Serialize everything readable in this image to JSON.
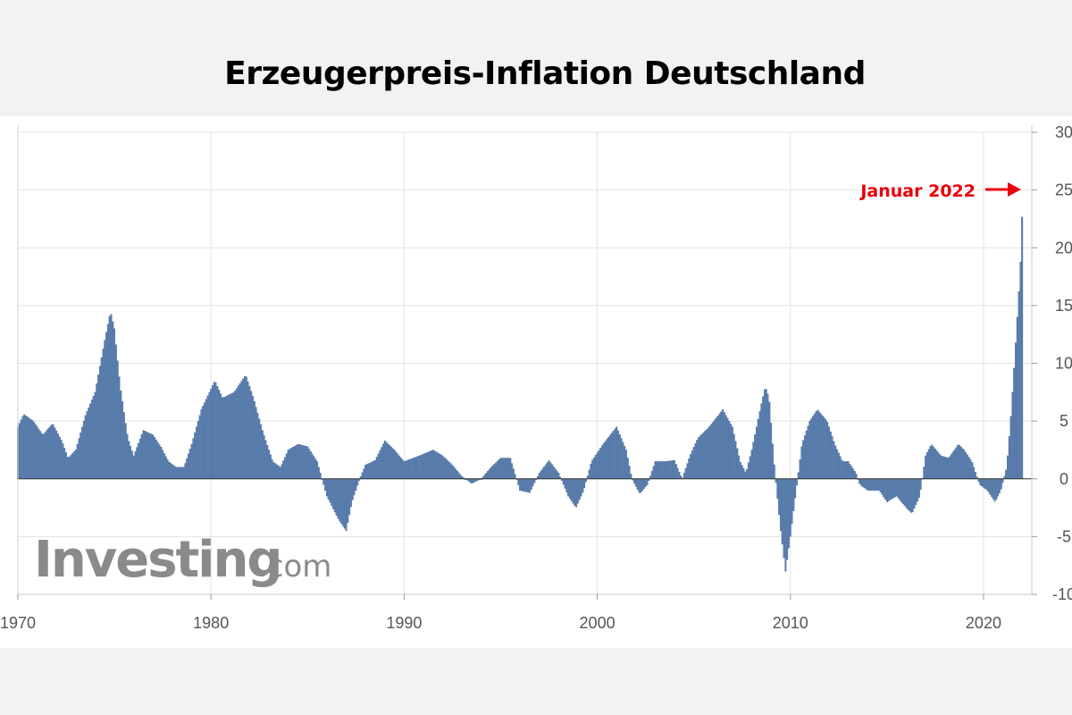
{
  "title": "Erzeugerpreis-Inflation Deutschland",
  "annotation": {
    "text": "Januar 2022",
    "x": 2022.0,
    "y": 25.0,
    "color": "#e8000b"
  },
  "watermark": {
    "main": "Investing",
    "domain": ".com"
  },
  "colors": {
    "bar": "#5b7fae",
    "bar_stroke": "#3f6496",
    "grid": "#e3e3e3",
    "axis_text": "#555555",
    "annotation": "#e8000b"
  },
  "chart_data": {
    "type": "bar",
    "xlabel": "",
    "ylabel": "",
    "xlim": [
      1970,
      2022.5
    ],
    "ylim": [
      -10,
      30
    ],
    "y_axis_position": "right",
    "grid": true,
    "x_ticks": [
      "1970",
      "1980",
      "1990",
      "2000",
      "2010",
      "2020"
    ],
    "y_ticks": [
      "30",
      "25",
      "20",
      "15",
      "10",
      "5",
      "0",
      "-5",
      "-10"
    ],
    "series": [
      {
        "values_description": "monthly year-over-year change in %, keyframes interpolated",
        "keyframes": [
          [
            1970.0,
            4.5
          ],
          [
            1970.3,
            5.6
          ],
          [
            1970.8,
            5.0
          ],
          [
            1971.3,
            3.8
          ],
          [
            1971.8,
            4.8
          ],
          [
            1972.3,
            3.2
          ],
          [
            1972.6,
            1.8
          ],
          [
            1973.0,
            2.5
          ],
          [
            1973.5,
            5.5
          ],
          [
            1974.0,
            7.5
          ],
          [
            1974.5,
            12.0
          ],
          [
            1974.8,
            14.5
          ],
          [
            1975.0,
            13.0
          ],
          [
            1975.3,
            8.0
          ],
          [
            1975.7,
            3.5
          ],
          [
            1976.0,
            2.0
          ],
          [
            1976.5,
            4.2
          ],
          [
            1977.0,
            3.8
          ],
          [
            1977.4,
            2.8
          ],
          [
            1977.8,
            1.5
          ],
          [
            1978.2,
            1.0
          ],
          [
            1978.6,
            1.0
          ],
          [
            1979.0,
            3.0
          ],
          [
            1979.5,
            6.0
          ],
          [
            1980.2,
            8.5
          ],
          [
            1980.6,
            7.0
          ],
          [
            1981.2,
            7.5
          ],
          [
            1981.8,
            9.0
          ],
          [
            1982.2,
            7.0
          ],
          [
            1982.7,
            4.0
          ],
          [
            1983.2,
            1.5
          ],
          [
            1983.6,
            1.0
          ],
          [
            1984.0,
            2.5
          ],
          [
            1984.5,
            3.0
          ],
          [
            1985.0,
            2.8
          ],
          [
            1985.5,
            1.5
          ],
          [
            1986.0,
            -1.5
          ],
          [
            1986.6,
            -3.5
          ],
          [
            1987.0,
            -4.5
          ],
          [
            1987.3,
            -2.0
          ],
          [
            1987.7,
            0.0
          ],
          [
            1988.0,
            1.2
          ],
          [
            1988.5,
            1.6
          ],
          [
            1989.0,
            3.3
          ],
          [
            1989.5,
            2.5
          ],
          [
            1990.0,
            1.5
          ],
          [
            1990.8,
            2.0
          ],
          [
            1991.5,
            2.5
          ],
          [
            1992.0,
            2.0
          ],
          [
            1992.5,
            1.2
          ],
          [
            1993.0,
            0.2
          ],
          [
            1993.5,
            -0.4
          ],
          [
            1994.0,
            0.0
          ],
          [
            1994.5,
            1.0
          ],
          [
            1995.0,
            1.8
          ],
          [
            1995.5,
            1.8
          ],
          [
            1996.0,
            -1.0
          ],
          [
            1996.5,
            -1.2
          ],
          [
            1997.0,
            0.5
          ],
          [
            1997.5,
            1.6
          ],
          [
            1998.0,
            0.5
          ],
          [
            1998.5,
            -1.5
          ],
          [
            1998.9,
            -2.5
          ],
          [
            1999.3,
            -1.0
          ],
          [
            1999.7,
            1.5
          ],
          [
            2000.3,
            3.0
          ],
          [
            2001.0,
            4.5
          ],
          [
            2001.5,
            2.5
          ],
          [
            2001.8,
            0.0
          ],
          [
            2002.2,
            -1.3
          ],
          [
            2002.6,
            -0.5
          ],
          [
            2003.0,
            1.5
          ],
          [
            2003.5,
            1.5
          ],
          [
            2004.0,
            1.6
          ],
          [
            2004.4,
            0.0
          ],
          [
            2004.8,
            2.0
          ],
          [
            2005.2,
            3.5
          ],
          [
            2005.8,
            4.5
          ],
          [
            2006.5,
            6.0
          ],
          [
            2007.0,
            4.5
          ],
          [
            2007.4,
            1.5
          ],
          [
            2007.7,
            0.5
          ],
          [
            2008.0,
            2.5
          ],
          [
            2008.5,
            6.5
          ],
          [
            2008.7,
            8.0
          ],
          [
            2008.9,
            7.0
          ],
          [
            2009.2,
            0.5
          ],
          [
            2009.5,
            -4.5
          ],
          [
            2009.75,
            -8.0
          ],
          [
            2010.0,
            -5.0
          ],
          [
            2010.3,
            -1.0
          ],
          [
            2010.6,
            3.0
          ],
          [
            2011.0,
            5.0
          ],
          [
            2011.4,
            6.0
          ],
          [
            2011.9,
            5.0
          ],
          [
            2012.3,
            3.0
          ],
          [
            2012.7,
            1.5
          ],
          [
            2013.0,
            1.5
          ],
          [
            2013.4,
            0.5
          ],
          [
            2013.6,
            -0.5
          ],
          [
            2014.0,
            -1.0
          ],
          [
            2014.6,
            -1.0
          ],
          [
            2015.0,
            -2.0
          ],
          [
            2015.5,
            -1.5
          ],
          [
            2016.0,
            -2.5
          ],
          [
            2016.3,
            -3.0
          ],
          [
            2016.7,
            -1.5
          ],
          [
            2017.0,
            2.0
          ],
          [
            2017.3,
            3.0
          ],
          [
            2017.8,
            2.0
          ],
          [
            2018.2,
            1.8
          ],
          [
            2018.7,
            3.0
          ],
          [
            2019.0,
            2.5
          ],
          [
            2019.4,
            1.5
          ],
          [
            2019.8,
            -0.5
          ],
          [
            2020.2,
            -1.0
          ],
          [
            2020.6,
            -2.0
          ],
          [
            2020.9,
            -1.0
          ],
          [
            2021.2,
            1.0
          ],
          [
            2021.4,
            5.0
          ],
          [
            2021.6,
            10.0
          ],
          [
            2021.75,
            14.0
          ],
          [
            2021.9,
            18.0
          ],
          [
            2022.05,
            25.0
          ]
        ]
      }
    ]
  }
}
